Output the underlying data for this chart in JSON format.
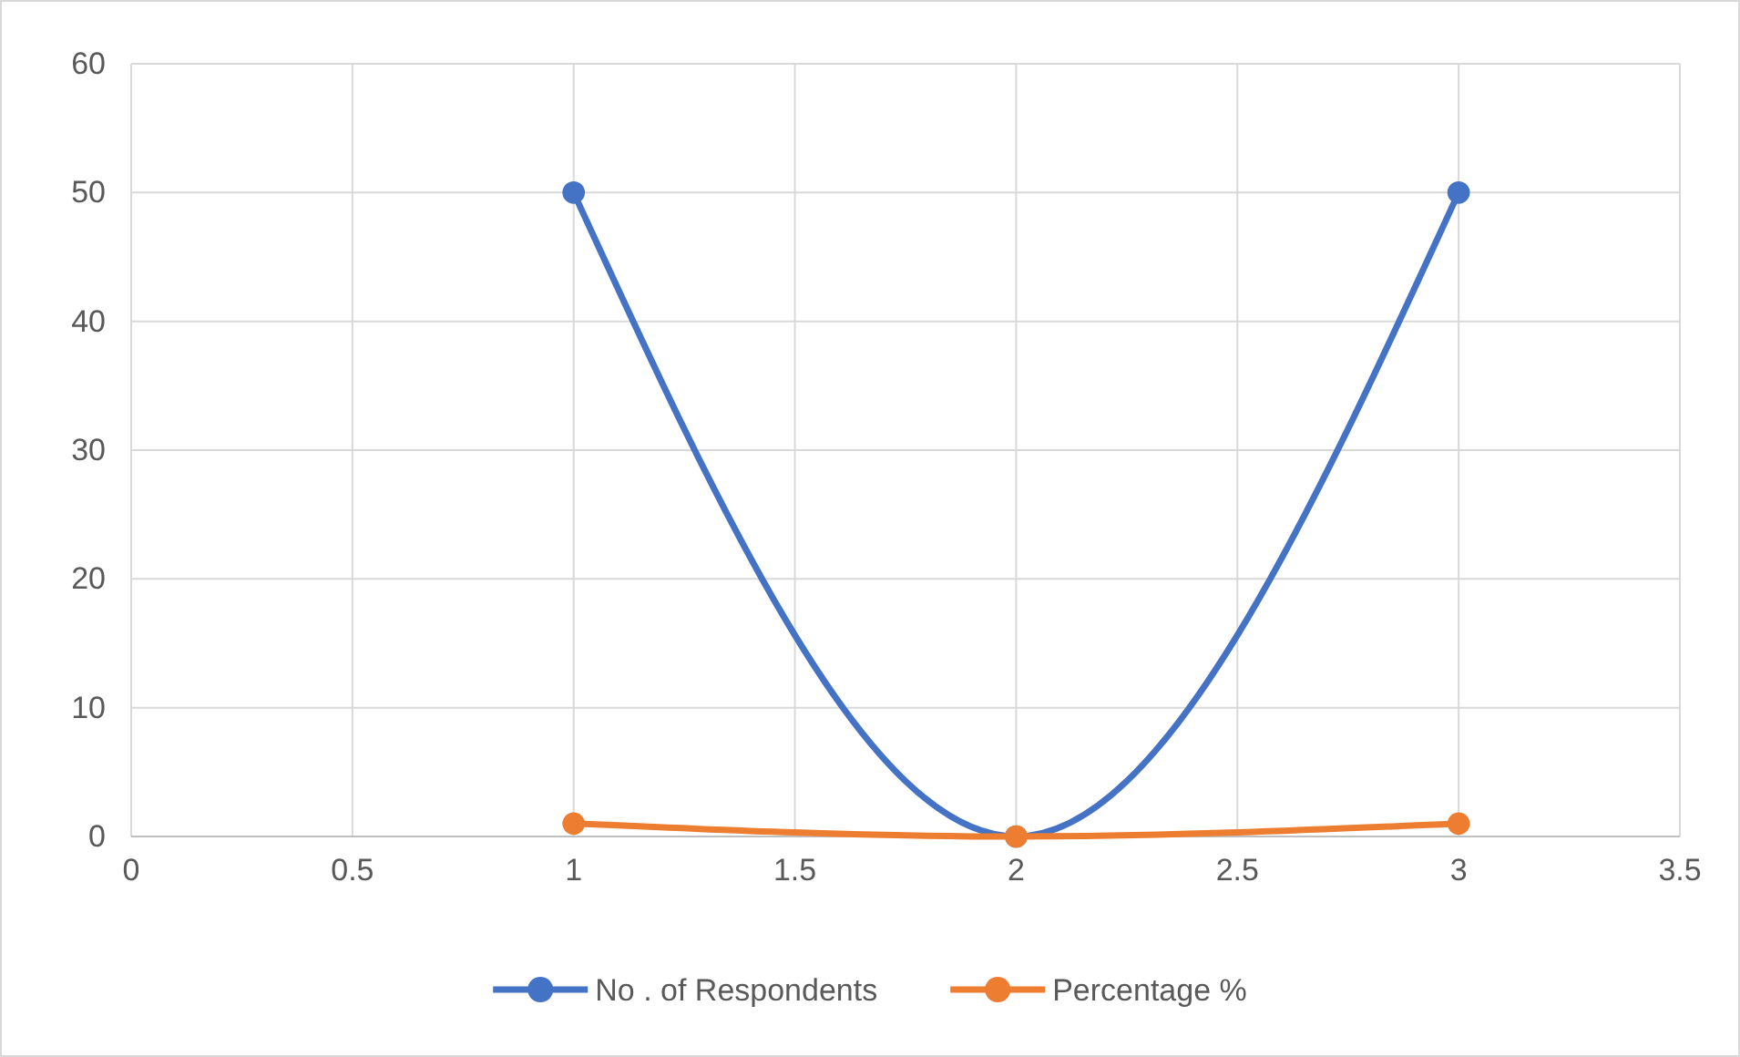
{
  "chart_data": {
    "type": "line",
    "x": [
      1,
      2,
      3
    ],
    "series": [
      {
        "name": "No . of Respondents",
        "color": "#4472c4",
        "values": [
          50,
          0,
          50
        ]
      },
      {
        "name": "Percentage %",
        "color": "#ed7d31",
        "values": [
          1,
          0,
          1
        ]
      }
    ],
    "xlim": [
      0,
      3.5
    ],
    "xticks": [
      0,
      0.5,
      1,
      1.5,
      2,
      2.5,
      3,
      3.5
    ],
    "ylim": [
      0,
      60
    ],
    "yticks": [
      0,
      10,
      20,
      30,
      40,
      50,
      60
    ],
    "grid": true,
    "legend": "bottom",
    "marker": "circle",
    "line_style": "solid"
  }
}
